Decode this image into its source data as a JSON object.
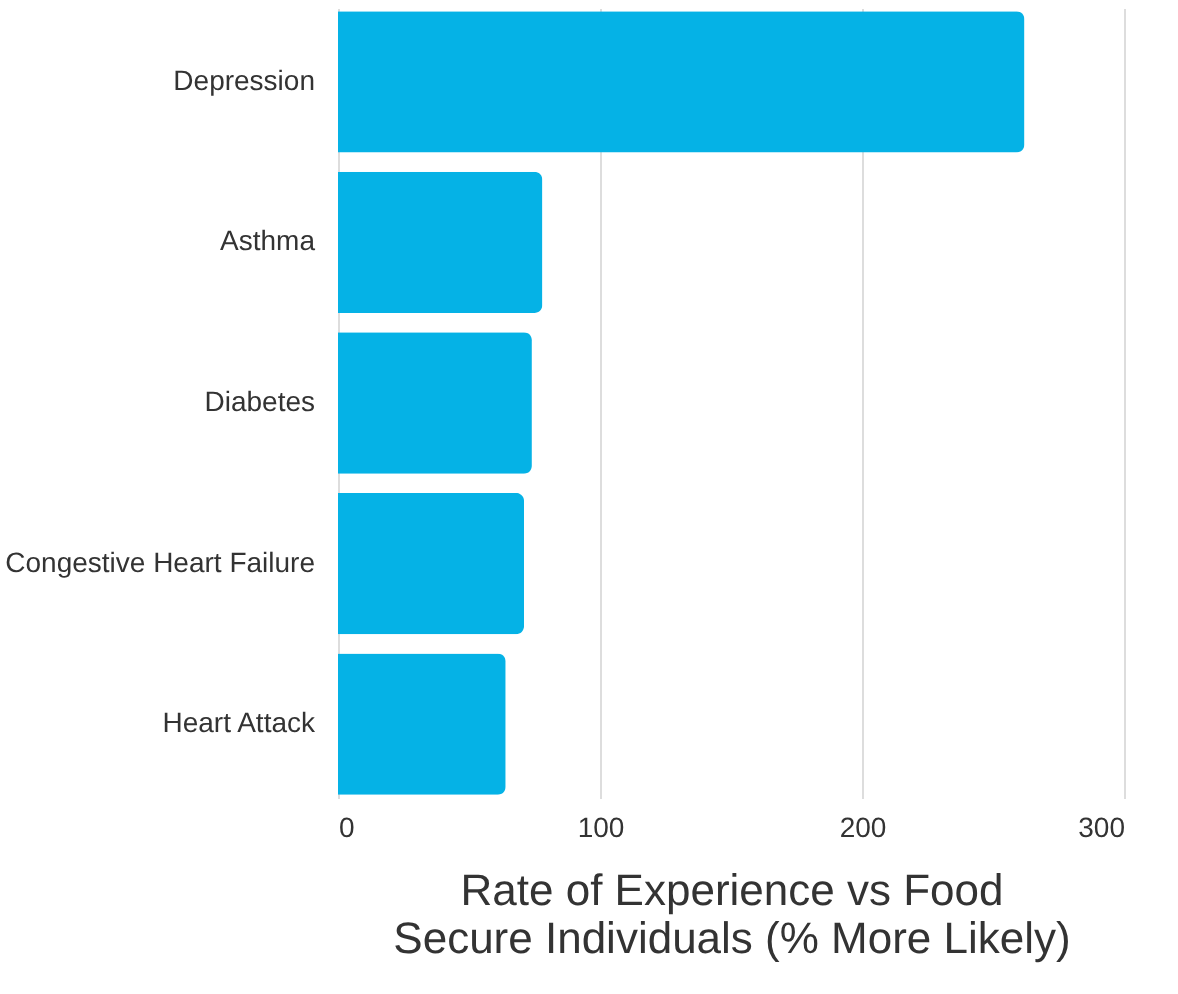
{
  "chart_data": {
    "type": "bar",
    "orientation": "horizontal",
    "categories": [
      "Depression",
      "Asthma",
      "Diabetes",
      "Congestive Heart Failure",
      "Heart Attack"
    ],
    "values": [
      262,
      78,
      74,
      71,
      64
    ],
    "color": "#05b2e6",
    "xlabel": "Rate of Experience vs Food Secure Individuals (% More Likely)",
    "xlim": [
      0,
      300
    ],
    "xticks": [
      0,
      100,
      200,
      300
    ],
    "grid": "x"
  }
}
